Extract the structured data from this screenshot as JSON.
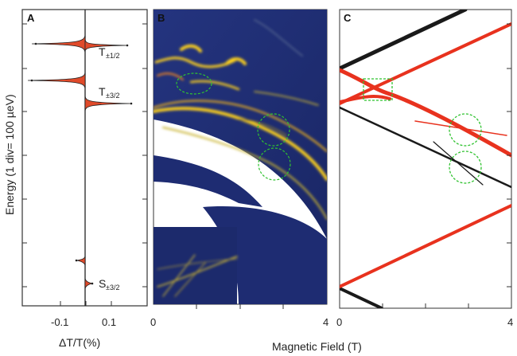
{
  "figure": {
    "panels": [
      {
        "letter": "A",
        "xlabel": "ΔT/T(%)",
        "x_ticks": [
          "-0.1",
          "0.1"
        ],
        "peaks": [
          {
            "label": "T",
            "sub": "±1/2"
          },
          {
            "label": "T",
            "sub": "±3/2"
          },
          {
            "label": "S",
            "sub": "±3/2"
          }
        ]
      },
      {
        "letter": "B",
        "x_ticks": [
          "0",
          "4"
        ]
      },
      {
        "letter": "C",
        "x_ticks": [
          "0",
          "4"
        ]
      }
    ],
    "ylabel": "Energy (1 div= 100 µeV)",
    "xlabel_shared": "Magnetic Field (T)"
  },
  "colors": {
    "map_background": "#1f2f7a",
    "map_highlight": "#ffd21a",
    "line_red": "#e8321e",
    "line_black": "#1a1a1a",
    "marker_green": "#2fc22f",
    "spectrum_fill": "#e04a2a"
  }
}
